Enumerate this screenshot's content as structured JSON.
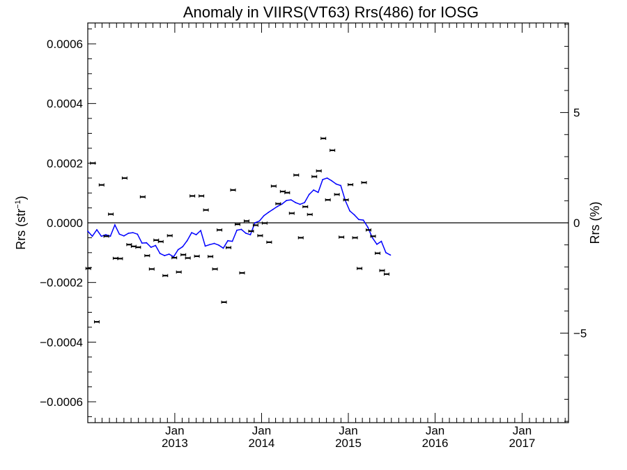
{
  "chart_data": {
    "type": "scatter",
    "title": "Anomaly in VIIRS(VT63) Rrs(486) for IOSG",
    "ylabel_left": "Rrs (str",
    "ylabel_left_sup": "−1",
    "ylabel_left_close": ")",
    "ylabel_right": "Rrs (%)",
    "ylim": [
      -0.00067,
      0.00067
    ],
    "y2lim": [
      -9.06,
      9.06
    ],
    "xlim": [
      "2012-01-01",
      "2017-07-15"
    ],
    "y_ticks": [
      {
        "value": 0.0006,
        "label": "0.0006"
      },
      {
        "value": 0.0004,
        "label": "0.0004"
      },
      {
        "value": 0.0002,
        "label": "0.0002"
      },
      {
        "value": 0.0,
        "label": "0.0000"
      },
      {
        "value": -0.0002,
        "label": "−0.0002"
      },
      {
        "value": -0.0004,
        "label": "−0.0004"
      },
      {
        "value": -0.0006,
        "label": "−0.0006"
      }
    ],
    "y2_ticks": [
      {
        "value": 5,
        "label": "5"
      },
      {
        "value": 0,
        "label": "0"
      },
      {
        "value": -5,
        "label": "−5"
      }
    ],
    "x_ticks": [
      {
        "date": "2013-01-01",
        "month": "Jan",
        "year": "2013"
      },
      {
        "date": "2014-01-01",
        "month": "Jan",
        "year": "2014"
      },
      {
        "date": "2015-01-01",
        "month": "Jan",
        "year": "2015"
      },
      {
        "date": "2016-01-01",
        "month": "Jan",
        "year": "2016"
      },
      {
        "date": "2017-01-01",
        "month": "Jan",
        "year": "2017"
      }
    ],
    "zero_line": true,
    "grid": false,
    "colors": {
      "points": "#000000",
      "line": "#0000ff",
      "axes": "#000000"
    },
    "series": [
      {
        "kind": "points_with_errorbars",
        "points": [
          {
            "x": "2012-01-03",
            "y": -0.000153
          },
          {
            "x": "2012-01-22",
            "y": 0.0002
          },
          {
            "x": "2012-02-08",
            "y": -0.000332
          },
          {
            "x": "2012-02-28",
            "y": 0.000127
          },
          {
            "x": "2012-03-19",
            "y": -4.5e-05
          },
          {
            "x": "2012-04-07",
            "y": 2.9e-05
          },
          {
            "x": "2012-04-27",
            "y": -0.000119
          },
          {
            "x": "2012-05-16",
            "y": -0.00012
          },
          {
            "x": "2012-06-04",
            "y": 0.00015
          },
          {
            "x": "2012-06-23",
            "y": -7.3e-05
          },
          {
            "x": "2012-07-12",
            "y": -7.9e-05
          },
          {
            "x": "2012-07-31",
            "y": -8.2e-05
          },
          {
            "x": "2012-08-19",
            "y": 8.7e-05
          },
          {
            "x": "2012-09-07",
            "y": -0.00011
          },
          {
            "x": "2012-09-26",
            "y": -0.000155
          },
          {
            "x": "2012-10-15",
            "y": -5.8e-05
          },
          {
            "x": "2012-11-03",
            "y": -6.3e-05
          },
          {
            "x": "2012-11-22",
            "y": -0.000177
          },
          {
            "x": "2012-12-11",
            "y": -4.3e-05
          },
          {
            "x": "2012-12-30",
            "y": -0.000117
          },
          {
            "x": "2013-01-18",
            "y": -0.000165
          },
          {
            "x": "2013-02-06",
            "y": -0.000107
          },
          {
            "x": "2013-02-25",
            "y": -0.000118
          },
          {
            "x": "2013-03-16",
            "y": 9e-05
          },
          {
            "x": "2013-04-04",
            "y": -0.000112
          },
          {
            "x": "2013-04-23",
            "y": 9e-05
          },
          {
            "x": "2013-05-12",
            "y": 4.3e-05
          },
          {
            "x": "2013-05-31",
            "y": -0.000113
          },
          {
            "x": "2013-06-19",
            "y": -0.000155
          },
          {
            "x": "2013-07-08",
            "y": -2.4e-05
          },
          {
            "x": "2013-07-27",
            "y": -0.000266
          },
          {
            "x": "2013-08-15",
            "y": -8.3e-05
          },
          {
            "x": "2013-09-03",
            "y": 0.00011
          },
          {
            "x": "2013-09-22",
            "y": -5e-06
          },
          {
            "x": "2013-10-11",
            "y": -0.000168
          },
          {
            "x": "2013-10-30",
            "y": 6e-06
          },
          {
            "x": "2013-11-18",
            "y": -2.8e-05
          },
          {
            "x": "2013-12-07",
            "y": -8e-06
          },
          {
            "x": "2013-12-26",
            "y": -4.3e-05
          },
          {
            "x": "2014-01-14",
            "y": -1e-06
          },
          {
            "x": "2014-02-02",
            "y": -6.5e-05
          },
          {
            "x": "2014-02-21",
            "y": 0.000123
          },
          {
            "x": "2014-03-12",
            "y": 6.4e-05
          },
          {
            "x": "2014-03-31",
            "y": 0.000105
          },
          {
            "x": "2014-04-19",
            "y": 0.000101
          },
          {
            "x": "2014-05-08",
            "y": 3.2e-05
          },
          {
            "x": "2014-05-27",
            "y": 0.00016
          },
          {
            "x": "2014-06-15",
            "y": -5e-05
          },
          {
            "x": "2014-07-04",
            "y": 5.4e-05
          },
          {
            "x": "2014-07-23",
            "y": 2.8e-05
          },
          {
            "x": "2014-08-11",
            "y": 0.000155
          },
          {
            "x": "2014-08-30",
            "y": 0.000174
          },
          {
            "x": "2014-09-18",
            "y": 0.000283
          },
          {
            "x": "2014-10-07",
            "y": 7.7e-05
          },
          {
            "x": "2014-10-26",
            "y": 0.000243
          },
          {
            "x": "2014-11-14",
            "y": 9.5e-05
          },
          {
            "x": "2014-12-03",
            "y": -4.8e-05
          },
          {
            "x": "2014-12-22",
            "y": 7.7e-05
          },
          {
            "x": "2015-01-10",
            "y": 0.000128
          },
          {
            "x": "2015-01-29",
            "y": -5e-05
          },
          {
            "x": "2015-02-17",
            "y": -0.000153
          },
          {
            "x": "2015-03-08",
            "y": 0.000135
          },
          {
            "x": "2015-03-27",
            "y": -2.4e-05
          },
          {
            "x": "2015-04-15",
            "y": -4.5e-05
          },
          {
            "x": "2015-05-04",
            "y": -0.000102
          },
          {
            "x": "2015-05-23",
            "y": -0.00016
          },
          {
            "x": "2015-06-11",
            "y": -0.000172
          }
        ]
      },
      {
        "kind": "line",
        "points": [
          {
            "x": "2012-01-01",
            "y": -2.8e-05
          },
          {
            "x": "2012-01-20",
            "y": -4.5e-05
          },
          {
            "x": "2012-02-08",
            "y": -2.3e-05
          },
          {
            "x": "2012-02-27",
            "y": -4.5e-05
          },
          {
            "x": "2012-03-17",
            "y": -4e-05
          },
          {
            "x": "2012-04-05",
            "y": -4.5e-05
          },
          {
            "x": "2012-04-24",
            "y": -7e-06
          },
          {
            "x": "2012-05-13",
            "y": -3.8e-05
          },
          {
            "x": "2012-06-01",
            "y": -4.4e-05
          },
          {
            "x": "2012-06-20",
            "y": -3.5e-05
          },
          {
            "x": "2012-07-09",
            "y": -3.3e-05
          },
          {
            "x": "2012-07-28",
            "y": -3.8e-05
          },
          {
            "x": "2012-08-16",
            "y": -6.8e-05
          },
          {
            "x": "2012-09-04",
            "y": -6.7e-05
          },
          {
            "x": "2012-09-23",
            "y": -8.2e-05
          },
          {
            "x": "2012-10-12",
            "y": -7.6e-05
          },
          {
            "x": "2012-10-31",
            "y": -0.000103
          },
          {
            "x": "2012-11-19",
            "y": -0.00011
          },
          {
            "x": "2012-12-08",
            "y": -0.000105
          },
          {
            "x": "2012-12-27",
            "y": -0.000114
          },
          {
            "x": "2013-01-15",
            "y": -9e-05
          },
          {
            "x": "2013-02-03",
            "y": -8e-05
          },
          {
            "x": "2013-02-22",
            "y": -6e-05
          },
          {
            "x": "2013-03-13",
            "y": -3.3e-05
          },
          {
            "x": "2013-04-01",
            "y": -4e-05
          },
          {
            "x": "2013-04-20",
            "y": -2.6e-05
          },
          {
            "x": "2013-05-09",
            "y": -7.8e-05
          },
          {
            "x": "2013-05-28",
            "y": -7.3e-05
          },
          {
            "x": "2013-06-16",
            "y": -6.9e-05
          },
          {
            "x": "2013-07-05",
            "y": -7.5e-05
          },
          {
            "x": "2013-07-24",
            "y": -8.5e-05
          },
          {
            "x": "2013-08-12",
            "y": -6e-05
          },
          {
            "x": "2013-08-31",
            "y": -6.2e-05
          },
          {
            "x": "2013-09-19",
            "y": -2.5e-05
          },
          {
            "x": "2013-10-08",
            "y": -2.2e-05
          },
          {
            "x": "2013-10-27",
            "y": -3.5e-05
          },
          {
            "x": "2013-11-15",
            "y": -4e-05
          },
          {
            "x": "2013-12-04",
            "y": 0.0
          },
          {
            "x": "2013-12-23",
            "y": 6e-06
          },
          {
            "x": "2014-01-11",
            "y": 2.4e-05
          },
          {
            "x": "2014-01-30",
            "y": 3.5e-05
          },
          {
            "x": "2014-02-18",
            "y": 4.5e-05
          },
          {
            "x": "2014-03-09",
            "y": 5.5e-05
          },
          {
            "x": "2014-03-28",
            "y": 6.3e-05
          },
          {
            "x": "2014-04-16",
            "y": 7.5e-05
          },
          {
            "x": "2014-05-05",
            "y": 7.7e-05
          },
          {
            "x": "2014-05-24",
            "y": 6.8e-05
          },
          {
            "x": "2014-06-12",
            "y": 6.2e-05
          },
          {
            "x": "2014-07-01",
            "y": 6.8e-05
          },
          {
            "x": "2014-07-20",
            "y": 9.5e-05
          },
          {
            "x": "2014-08-08",
            "y": 0.00011
          },
          {
            "x": "2014-08-27",
            "y": 0.000102
          },
          {
            "x": "2014-09-15",
            "y": 0.000145
          },
          {
            "x": "2014-10-04",
            "y": 0.00015
          },
          {
            "x": "2014-10-23",
            "y": 0.000141
          },
          {
            "x": "2014-11-11",
            "y": 0.00013
          },
          {
            "x": "2014-11-30",
            "y": 0.000125
          },
          {
            "x": "2014-12-19",
            "y": 7.5e-05
          },
          {
            "x": "2015-01-07",
            "y": 4e-05
          },
          {
            "x": "2015-01-26",
            "y": 2.7e-05
          },
          {
            "x": "2015-02-14",
            "y": 1.1e-05
          },
          {
            "x": "2015-03-05",
            "y": 9e-06
          },
          {
            "x": "2015-03-24",
            "y": -1.5e-05
          },
          {
            "x": "2015-04-12",
            "y": -5e-05
          },
          {
            "x": "2015-05-01",
            "y": -7.2e-05
          },
          {
            "x": "2015-05-20",
            "y": -6.2e-05
          },
          {
            "x": "2015-06-08",
            "y": -0.0001
          },
          {
            "x": "2015-06-27",
            "y": -0.000108
          }
        ]
      }
    ]
  }
}
